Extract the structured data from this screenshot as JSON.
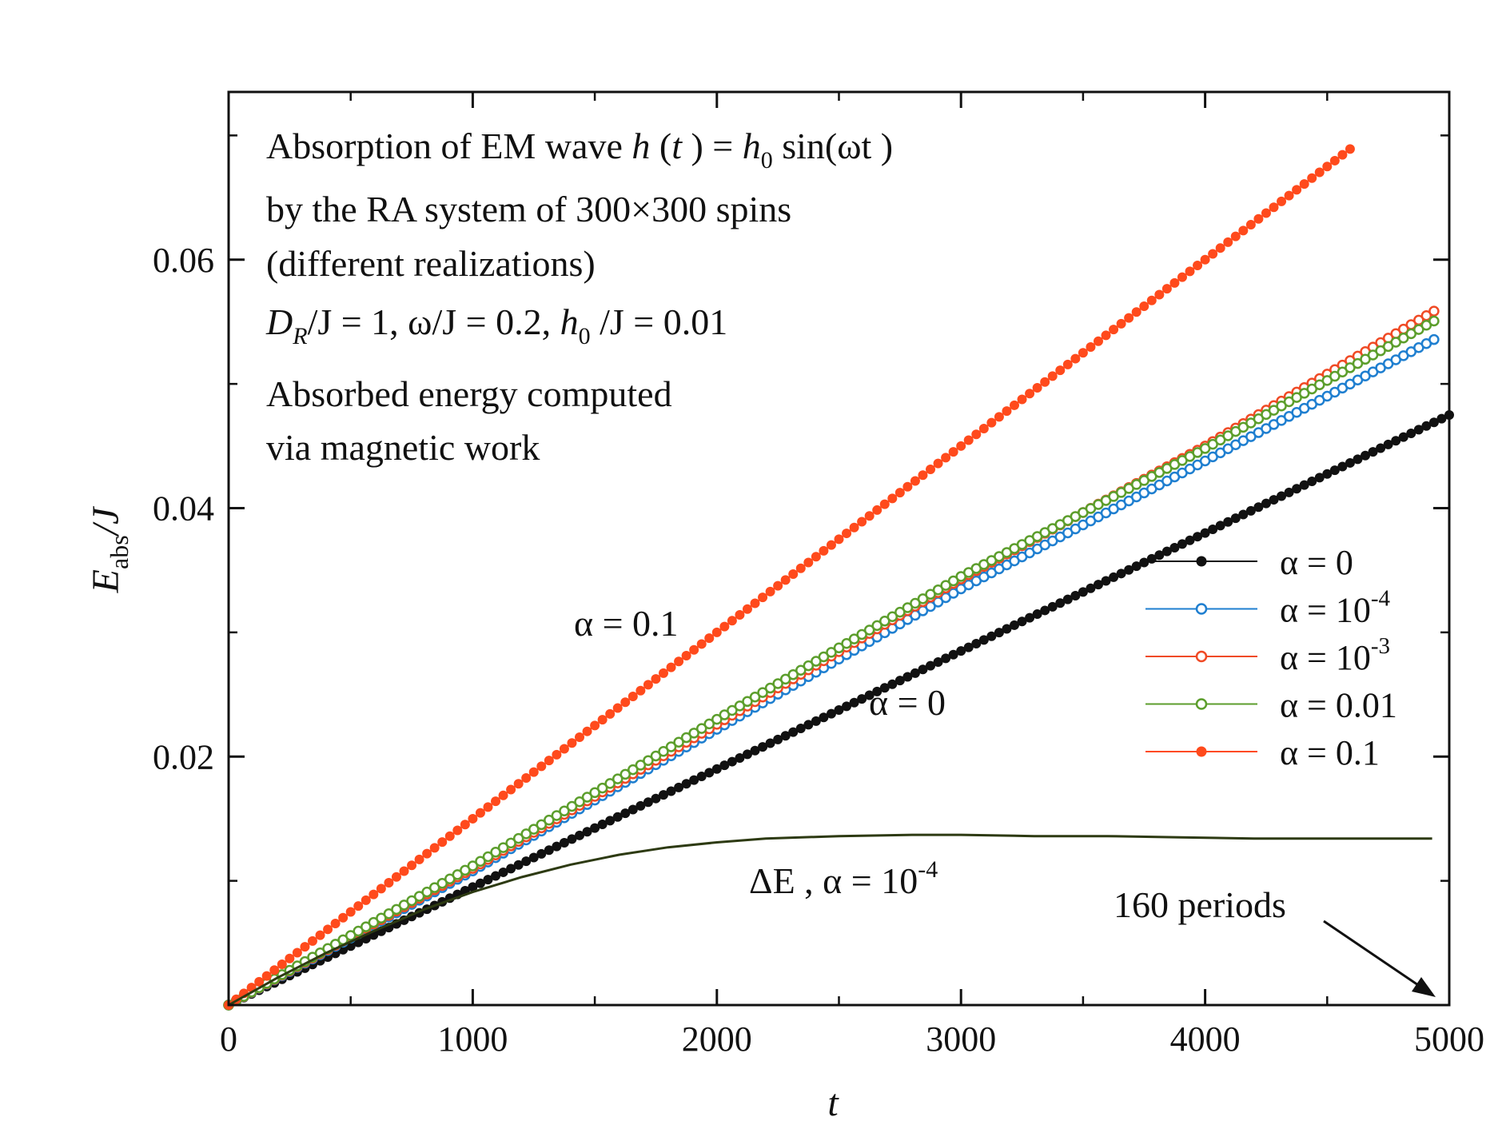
{
  "chart_data": {
    "type": "line",
    "title": "",
    "xlabel": "t",
    "ylabel": "E_abs/J",
    "ylabel_main": "E",
    "ylabel_sub": "abs",
    "ylabel_tail": "/J",
    "xlim": [
      0,
      5000
    ],
    "ylim": [
      0,
      0.0735
    ],
    "x_ticks": [
      0,
      1000,
      2000,
      3000,
      4000,
      5000
    ],
    "x_tick_labels": [
      "0",
      "1000",
      "2000",
      "3000",
      "4000",
      "5000"
    ],
    "x_minor_ticks": [
      500,
      1500,
      2500,
      3500,
      4500
    ],
    "y_ticks": [
      0.02,
      0.04,
      0.06
    ],
    "y_tick_labels": [
      "0.02",
      "0.04",
      "0.06"
    ],
    "y_minor_ticks": [
      0.01,
      0.03,
      0.05,
      0.07
    ],
    "grid": false,
    "legend_position": "right",
    "series": [
      {
        "name": "α = 0",
        "label_main": "α = 0",
        "label_sup": "",
        "color": "#111111",
        "marker": "filled",
        "points": [
          [
            0,
            0
          ],
          [
            5000,
            0.0475
          ]
        ]
      },
      {
        "name": "α = 10-4",
        "label_main": "α = 10",
        "label_sup": "-4",
        "color": "#1f7fd0",
        "marker": "open",
        "points": [
          [
            0,
            0
          ],
          [
            1000,
            0.0108
          ],
          [
            2000,
            0.0222
          ],
          [
            3000,
            0.0335
          ],
          [
            4000,
            0.0438
          ],
          [
            4950,
            0.0537
          ]
        ]
      },
      {
        "name": "α = 10-3",
        "label_main": "α = 10",
        "label_sup": "-3",
        "color": "#f04a25",
        "marker": "open",
        "points": [
          [
            0,
            0
          ],
          [
            1000,
            0.011
          ],
          [
            2000,
            0.0226
          ],
          [
            3000,
            0.0343
          ],
          [
            4000,
            0.045
          ],
          [
            4950,
            0.056
          ]
        ]
      },
      {
        "name": "α = 0.01",
        "label_main": "α = 0.01",
        "label_sup": "",
        "color": "#5c9e2c",
        "marker": "open",
        "points": [
          [
            0,
            0
          ],
          [
            1000,
            0.0112
          ],
          [
            2000,
            0.023
          ],
          [
            3000,
            0.0345
          ],
          [
            4000,
            0.0448
          ],
          [
            4950,
            0.0552
          ]
        ]
      },
      {
        "name": "α = 0.1",
        "label_main": "α = 0.1",
        "label_sup": "",
        "color": "#ff4a1c",
        "marker": "filled",
        "points": [
          [
            0,
            0
          ],
          [
            4600,
            0.069
          ]
        ]
      },
      {
        "name": "ΔE, α = 10-4",
        "label_main": "ΔE, α = 10",
        "label_sup": "-4",
        "color": "#2d3a12",
        "marker": "none",
        "points": [
          [
            0,
            0
          ],
          [
            200,
            0.0022
          ],
          [
            400,
            0.0042
          ],
          [
            600,
            0.006
          ],
          [
            800,
            0.0077
          ],
          [
            1000,
            0.0091
          ],
          [
            1200,
            0.0103
          ],
          [
            1400,
            0.0113
          ],
          [
            1600,
            0.0121
          ],
          [
            1800,
            0.0127
          ],
          [
            2000,
            0.0131
          ],
          [
            2200,
            0.0134
          ],
          [
            2500,
            0.0136
          ],
          [
            2800,
            0.0137
          ],
          [
            3000,
            0.0137
          ],
          [
            3300,
            0.0136
          ],
          [
            3600,
            0.0136
          ],
          [
            3900,
            0.0135
          ],
          [
            4200,
            0.0134
          ],
          [
            4500,
            0.0134
          ],
          [
            4700,
            0.0134
          ],
          [
            4930,
            0.0134
          ]
        ]
      }
    ],
    "annotations": {
      "title_line1_a": "Absorption of EM wave ",
      "title_line1_h": "h",
      "title_line1_b": " (",
      "title_line1_t": "t",
      "title_line1_c": " ) = ",
      "title_line1_h0": "h",
      "title_line1_sub0": "0",
      "title_line1_d": " sin(ωt )",
      "line2": "by the RA system of 300×300 spins",
      "line3": "(different realizations)",
      "line4_a": "D",
      "line4_sub_r": "R",
      "line4_b": "/J  = 1, ω/J  = 0.2, ",
      "line4_h": "h",
      "line4_sub_0": "0",
      "line4_c": " /J = 0.01",
      "line5": "Absorbed energy computed",
      "line6": "via magnetic work",
      "label_alpha01": "α = 0.1",
      "label_alpha0": "α = 0",
      "label_de_main": "ΔE , α = 10",
      "label_de_sup": "-4",
      "label_periods": "160 periods"
    }
  }
}
